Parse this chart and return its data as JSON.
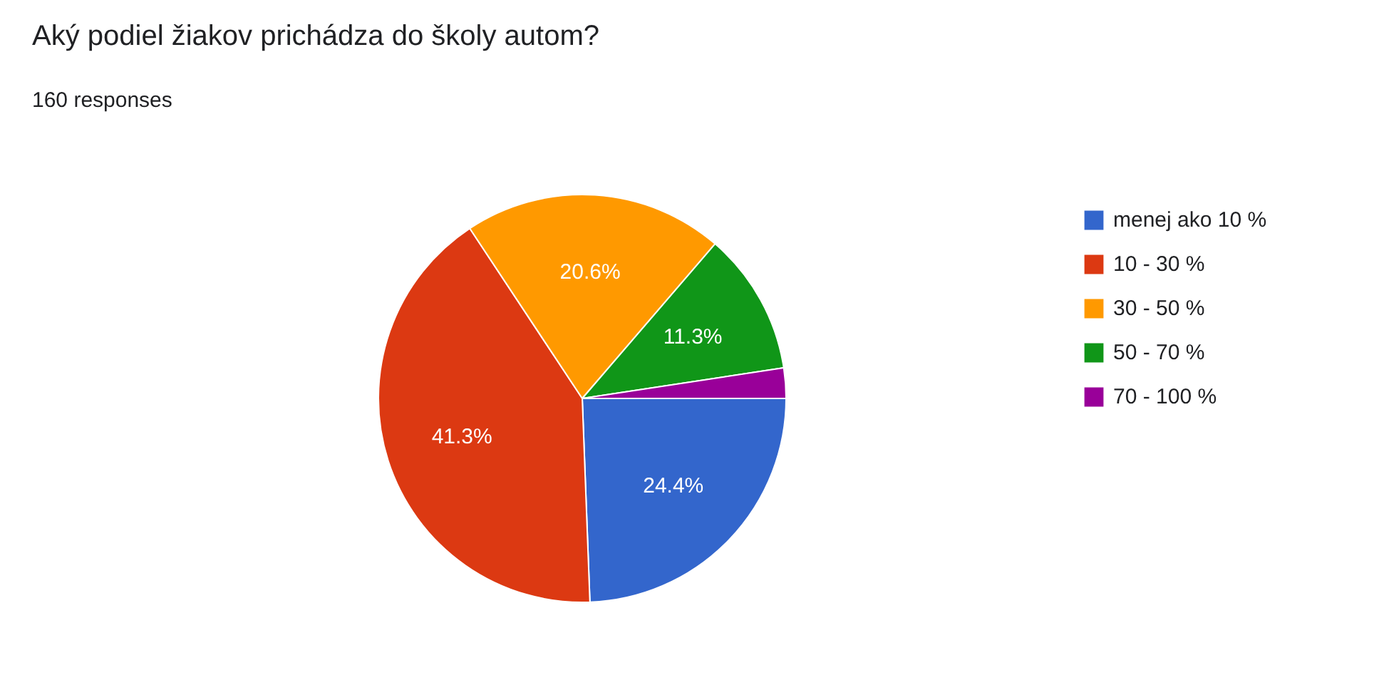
{
  "chart_data": {
    "type": "pie",
    "title": "Aký podiel žiakov prichádza do školy autom?",
    "subtitle": "160 responses",
    "categories": [
      "menej ako 10 %",
      "10 - 30 %",
      "30 - 50 %",
      "50 - 70 %",
      "70 - 100 %"
    ],
    "values": [
      24.4,
      41.3,
      20.6,
      11.3,
      2.4
    ],
    "colors": [
      "#3366cc",
      "#dc3912",
      "#ff9900",
      "#109618",
      "#990099"
    ],
    "value_labels": [
      "24.4%",
      "41.3%",
      "20.6%",
      "11.3%",
      null
    ],
    "legend": "right"
  }
}
